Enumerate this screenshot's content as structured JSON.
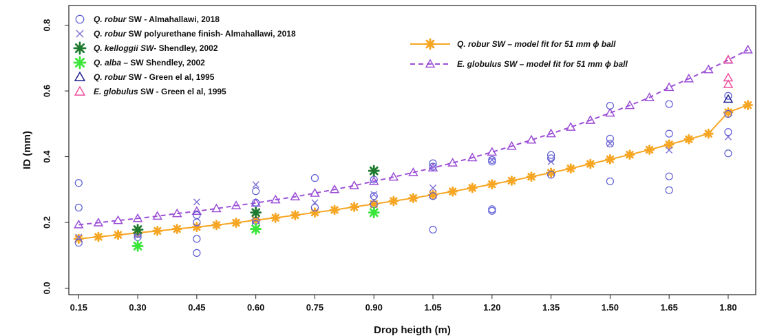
{
  "chart_data": {
    "type": "scatter",
    "xlabel": "Drop heigth (m)",
    "ylabel": "ID (mm)",
    "xlim": [
      0.125,
      1.87
    ],
    "ylim": [
      -0.02,
      0.86
    ],
    "xticks": [
      "0.15",
      "0.30",
      "0.45",
      "0.60",
      "0.75",
      "0.90",
      "1.05",
      "1.20",
      "1.35",
      "1.50",
      "1.65",
      "1.80"
    ],
    "yticks": [
      "0.0",
      "0.2",
      "0.4",
      "0.6",
      "0.8"
    ],
    "grid": false,
    "legend_left": [
      {
        "species": "Q. robur",
        "rest": " SW - Almahallawi, 2018",
        "marker": "circle",
        "color": "#5b5bd6"
      },
      {
        "species": "Q. robur",
        "rest": " SW polyurethane finish- Almahallawi, 2018",
        "marker": "x",
        "color": "#7b6fd6"
      },
      {
        "species": "Q. kelloggii SW",
        "rest": "- Shendley, 2002",
        "marker": "star",
        "color": "#1e7a2e"
      },
      {
        "species": "Q. alba",
        "rest": " – SW Shendley, 2002",
        "marker": "star",
        "color": "#39e639"
      },
      {
        "species": "Q. robur",
        "rest": " SW - Green el al, 1995",
        "marker": "triangle",
        "color": "#1c1c8c"
      },
      {
        "species": "E. globulus",
        "rest": " SW - Green el al, 1995",
        "marker": "triangle",
        "color": "#ee4f9c"
      }
    ],
    "legend_right": [
      {
        "label": "Q. robur SW – model fit for 51 mm ϕ ball",
        "marker": "star-line",
        "color": "#f6a623"
      },
      {
        "label": "E. globulus SW – model fit for 51 mm ϕ ball",
        "marker": "triangle-dash",
        "color": "#9b4fd6"
      }
    ],
    "series": [
      {
        "name": "Q. robur SW - Almahallawi, 2018",
        "marker": "circle",
        "color": "#5b5bd6",
        "points": [
          [
            0.15,
            0.32
          ],
          [
            0.15,
            0.245
          ],
          [
            0.15,
            0.138
          ],
          [
            0.3,
            0.165
          ],
          [
            0.3,
            0.155
          ],
          [
            0.45,
            0.222
          ],
          [
            0.45,
            0.2
          ],
          [
            0.45,
            0.15
          ],
          [
            0.45,
            0.107
          ],
          [
            0.6,
            0.295
          ],
          [
            0.6,
            0.26
          ],
          [
            0.6,
            0.205
          ],
          [
            0.6,
            0.195
          ],
          [
            0.75,
            0.335
          ],
          [
            0.75,
            0.245
          ],
          [
            0.9,
            0.33
          ],
          [
            0.9,
            0.28
          ],
          [
            0.9,
            0.255
          ],
          [
            1.05,
            0.38
          ],
          [
            1.05,
            0.37
          ],
          [
            1.05,
            0.28
          ],
          [
            1.05,
            0.178
          ],
          [
            1.2,
            0.39
          ],
          [
            1.2,
            0.385
          ],
          [
            1.2,
            0.24
          ],
          [
            1.2,
            0.235
          ],
          [
            1.35,
            0.405
          ],
          [
            1.35,
            0.395
          ],
          [
            1.35,
            0.345
          ],
          [
            1.5,
            0.555
          ],
          [
            1.5,
            0.455
          ],
          [
            1.5,
            0.44
          ],
          [
            1.5,
            0.325
          ],
          [
            1.65,
            0.56
          ],
          [
            1.65,
            0.47
          ],
          [
            1.65,
            0.34
          ],
          [
            1.65,
            0.298
          ],
          [
            1.8,
            0.585
          ],
          [
            1.8,
            0.53
          ],
          [
            1.8,
            0.475
          ],
          [
            1.8,
            0.41
          ]
        ]
      },
      {
        "name": "Q. robur SW polyurethane finish- Almahallawi, 2018",
        "marker": "x",
        "color": "#7b6fd6",
        "points": [
          [
            0.15,
            0.155
          ],
          [
            0.3,
            0.16
          ],
          [
            0.45,
            0.262
          ],
          [
            0.6,
            0.315
          ],
          [
            0.75,
            0.26
          ],
          [
            0.9,
            0.285
          ],
          [
            1.05,
            0.305
          ],
          [
            1.2,
            0.39
          ],
          [
            1.35,
            0.385
          ],
          [
            1.5,
            0.44
          ],
          [
            1.65,
            0.42
          ],
          [
            1.8,
            0.46
          ]
        ]
      },
      {
        "name": "Q. kelloggii SW- Shendley, 2002",
        "marker": "star",
        "color": "#1e7a2e",
        "points": [
          [
            0.3,
            0.178
          ],
          [
            0.6,
            0.23
          ],
          [
            0.9,
            0.357
          ]
        ]
      },
      {
        "name": "Q. alba – SW Shendley, 2002",
        "marker": "star",
        "color": "#39e639",
        "points": [
          [
            0.3,
            0.128
          ],
          [
            0.6,
            0.18
          ],
          [
            0.9,
            0.23
          ]
        ]
      },
      {
        "name": "Q. robur SW - Green el al, 1995",
        "marker": "triangle",
        "color": "#1c1c8c",
        "points": [
          [
            1.8,
            0.575
          ]
        ]
      },
      {
        "name": "E. globulus SW - Green el al, 1995",
        "marker": "triangle",
        "color": "#ee4f9c",
        "points": [
          [
            1.8,
            0.695
          ],
          [
            1.8,
            0.64
          ],
          [
            1.8,
            0.62
          ]
        ]
      },
      {
        "name": "Q. robur SW – model fit for 51 mm ϕ ball",
        "marker": "star-line",
        "color": "#f6a623",
        "x": [
          0.15,
          0.2,
          0.25,
          0.3,
          0.35,
          0.4,
          0.45,
          0.5,
          0.55,
          0.6,
          0.65,
          0.7,
          0.75,
          0.8,
          0.85,
          0.9,
          0.95,
          1.0,
          1.05,
          1.1,
          1.15,
          1.2,
          1.25,
          1.3,
          1.35,
          1.4,
          1.45,
          1.5,
          1.55,
          1.6,
          1.65,
          1.7,
          1.75,
          1.8,
          1.85
        ],
        "y": [
          0.15,
          0.156,
          0.162,
          0.168,
          0.174,
          0.18,
          0.186,
          0.192,
          0.199,
          0.207,
          0.214,
          0.222,
          0.23,
          0.238,
          0.247,
          0.256,
          0.265,
          0.274,
          0.284,
          0.294,
          0.305,
          0.316,
          0.327,
          0.339,
          0.351,
          0.364,
          0.378,
          0.392,
          0.406,
          0.421,
          0.437,
          0.453,
          0.47,
          0.535,
          0.557
        ]
      },
      {
        "name": "E. globulus SW – model fit for 51 mm ϕ ball",
        "marker": "triangle-dash",
        "color": "#9b4fd6",
        "x": [
          0.15,
          0.2,
          0.25,
          0.3,
          0.35,
          0.4,
          0.45,
          0.5,
          0.55,
          0.6,
          0.65,
          0.7,
          0.75,
          0.8,
          0.85,
          0.9,
          0.95,
          1.0,
          1.05,
          1.1,
          1.15,
          1.2,
          1.25,
          1.3,
          1.35,
          1.4,
          1.45,
          1.5,
          1.55,
          1.6,
          1.65,
          1.7,
          1.75,
          1.8,
          1.85
        ],
        "y": [
          0.193,
          0.199,
          0.206,
          0.212,
          0.219,
          0.227,
          0.234,
          0.242,
          0.251,
          0.259,
          0.269,
          0.278,
          0.289,
          0.3,
          0.312,
          0.325,
          0.338,
          0.352,
          0.366,
          0.381,
          0.397,
          0.414,
          0.432,
          0.451,
          0.47,
          0.49,
          0.511,
          0.533,
          0.556,
          0.58,
          0.611,
          0.637,
          0.665,
          0.694,
          0.725
        ]
      }
    ]
  }
}
